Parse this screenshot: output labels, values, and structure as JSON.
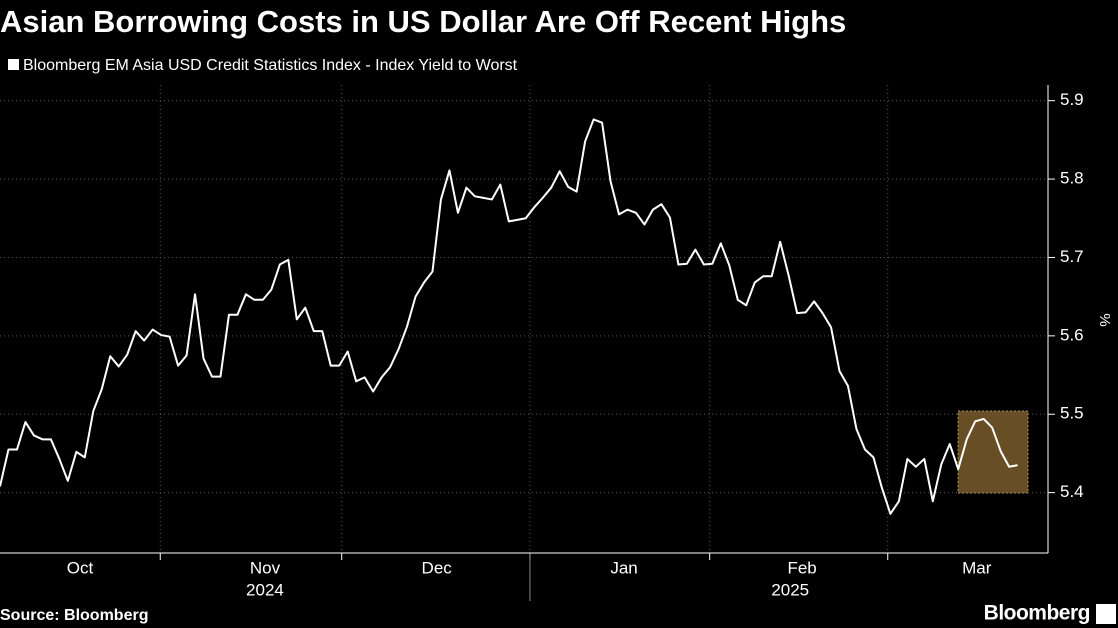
{
  "chart_data": {
    "type": "line",
    "title": "Asian Borrowing Costs in US Dollar Are Off Recent Highs",
    "subtitle": "Bloomberg EM Asia USD Credit Statistics Index - Index Yield to Worst",
    "y_label": "%",
    "source": "Source: Bloomberg",
    "brand": "Bloomberg",
    "series": [
      {
        "name": "Bloomberg EM Asia USD Credit Statistics Index - Index Yield to Worst",
        "color": "#ffffff",
        "values": [
          5.408,
          5.455,
          5.455,
          5.49,
          5.473,
          5.468,
          5.468,
          5.443,
          5.415,
          5.452,
          5.445,
          5.504,
          5.532,
          5.574,
          5.561,
          5.576,
          5.606,
          5.594,
          5.608,
          5.601,
          5.599,
          5.562,
          5.575,
          5.653,
          5.571,
          5.548,
          5.548,
          5.627,
          5.627,
          5.653,
          5.646,
          5.646,
          5.659,
          5.691,
          5.697,
          5.621,
          5.636,
          5.606,
          5.606,
          5.562,
          5.562,
          5.58,
          5.542,
          5.547,
          5.529,
          5.547,
          5.56,
          5.583,
          5.612,
          5.65,
          5.668,
          5.682,
          5.774,
          5.811,
          5.757,
          5.789,
          5.778,
          5.776,
          5.774,
          5.793,
          5.746,
          5.748,
          5.75,
          5.764,
          5.776,
          5.789,
          5.81,
          5.79,
          5.784,
          5.848,
          5.876,
          5.872,
          5.797,
          5.755,
          5.761,
          5.757,
          5.742,
          5.761,
          5.768,
          5.751,
          5.691,
          5.692,
          5.71,
          5.691,
          5.692,
          5.718,
          5.69,
          5.646,
          5.639,
          5.668,
          5.676,
          5.676,
          5.72,
          5.677,
          5.629,
          5.63,
          5.644,
          5.629,
          5.611,
          5.555,
          5.536,
          5.481,
          5.455,
          5.445,
          5.406,
          5.373,
          5.389,
          5.443,
          5.433,
          5.443,
          5.389,
          5.436,
          5.462,
          5.43,
          5.468,
          5.491,
          5.494,
          5.483,
          5.453,
          5.433,
          5.435
        ]
      }
    ],
    "xlim": [
      0,
      123.6
    ],
    "xticks": [
      {
        "value": 9.43,
        "label": "Oct"
      },
      {
        "value": 31.25,
        "label": "Nov"
      },
      {
        "value": 51.5,
        "label": "Dec"
      },
      {
        "value": 73.6,
        "label": "Jan"
      },
      {
        "value": 94.6,
        "label": "Feb"
      },
      {
        "value": 115.2,
        "label": "Mar"
      }
    ],
    "xgrid": [
      18.9,
      40.3,
      62.5,
      83.7,
      104.7
    ],
    "year_ticks": [
      {
        "value": 31.25,
        "label": "2024"
      },
      {
        "value": 93.2,
        "label": "2025"
      }
    ],
    "ylim": [
      5.323,
      5.92
    ],
    "yticks": [
      5.4,
      5.5,
      5.6,
      5.7,
      5.8,
      5.9
    ],
    "grid": true
  }
}
